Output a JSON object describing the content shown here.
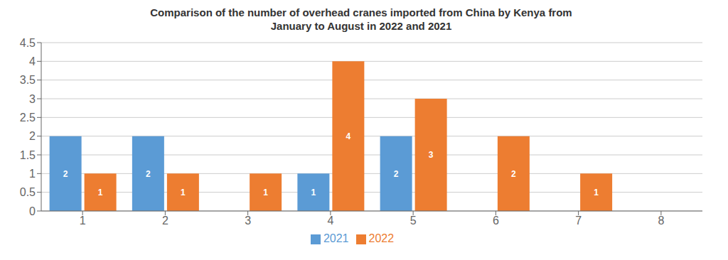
{
  "chart_data": {
    "type": "bar",
    "title": "Comparison of the number of overhead cranes imported from China by Kenya from\nJanuary to August in 2022 and 2021",
    "categories": [
      "1",
      "2",
      "3",
      "4",
      "5",
      "6",
      "7",
      "8"
    ],
    "series": [
      {
        "name": "2021",
        "color": "#5B9BD5",
        "values": [
          2,
          2,
          0,
          1,
          2,
          0,
          0,
          0
        ]
      },
      {
        "name": "2022",
        "color": "#ED7D31",
        "values": [
          1,
          1,
          1,
          4,
          3,
          2,
          1,
          0
        ]
      }
    ],
    "ylim": [
      0,
      4.5
    ],
    "yticks": [
      0,
      0.5,
      1,
      1.5,
      2,
      2.5,
      3,
      3.5,
      4,
      4.5
    ],
    "grid": true,
    "legend": "bottom",
    "data_labels": true
  }
}
